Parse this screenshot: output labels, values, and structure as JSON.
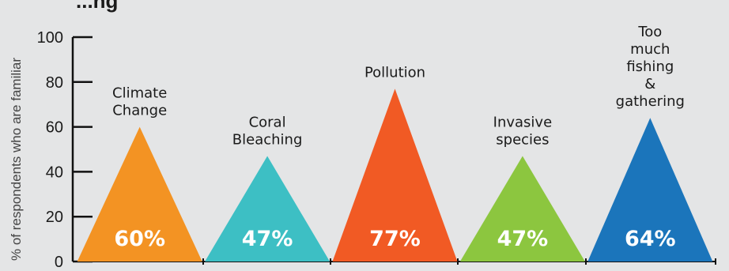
{
  "chart_data": {
    "type": "bar",
    "title_fragment": "...ng",
    "ylabel": "% of respondents who are familiar",
    "ylim": [
      0,
      100
    ],
    "yticks": [
      0,
      20,
      40,
      60,
      80,
      100
    ],
    "grid": false,
    "categories": [
      {
        "label": [
          "Climate",
          "Change"
        ],
        "value": 60,
        "value_label": "60%",
        "color": "#f39323"
      },
      {
        "label": [
          "Coral",
          "Bleaching"
        ],
        "value": 47,
        "value_label": "47%",
        "color": "#3dbfc4"
      },
      {
        "label": [
          "Pollution"
        ],
        "value": 77,
        "value_label": "77%",
        "color": "#f15a24"
      },
      {
        "label": [
          "Invasive",
          "species"
        ],
        "value": 47,
        "value_label": "47%",
        "color": "#8cc63f"
      },
      {
        "label": [
          "Too",
          "much",
          "fishing",
          "&",
          "gathering"
        ],
        "value": 64,
        "value_label": "64%",
        "color": "#1b75bb"
      }
    ]
  }
}
